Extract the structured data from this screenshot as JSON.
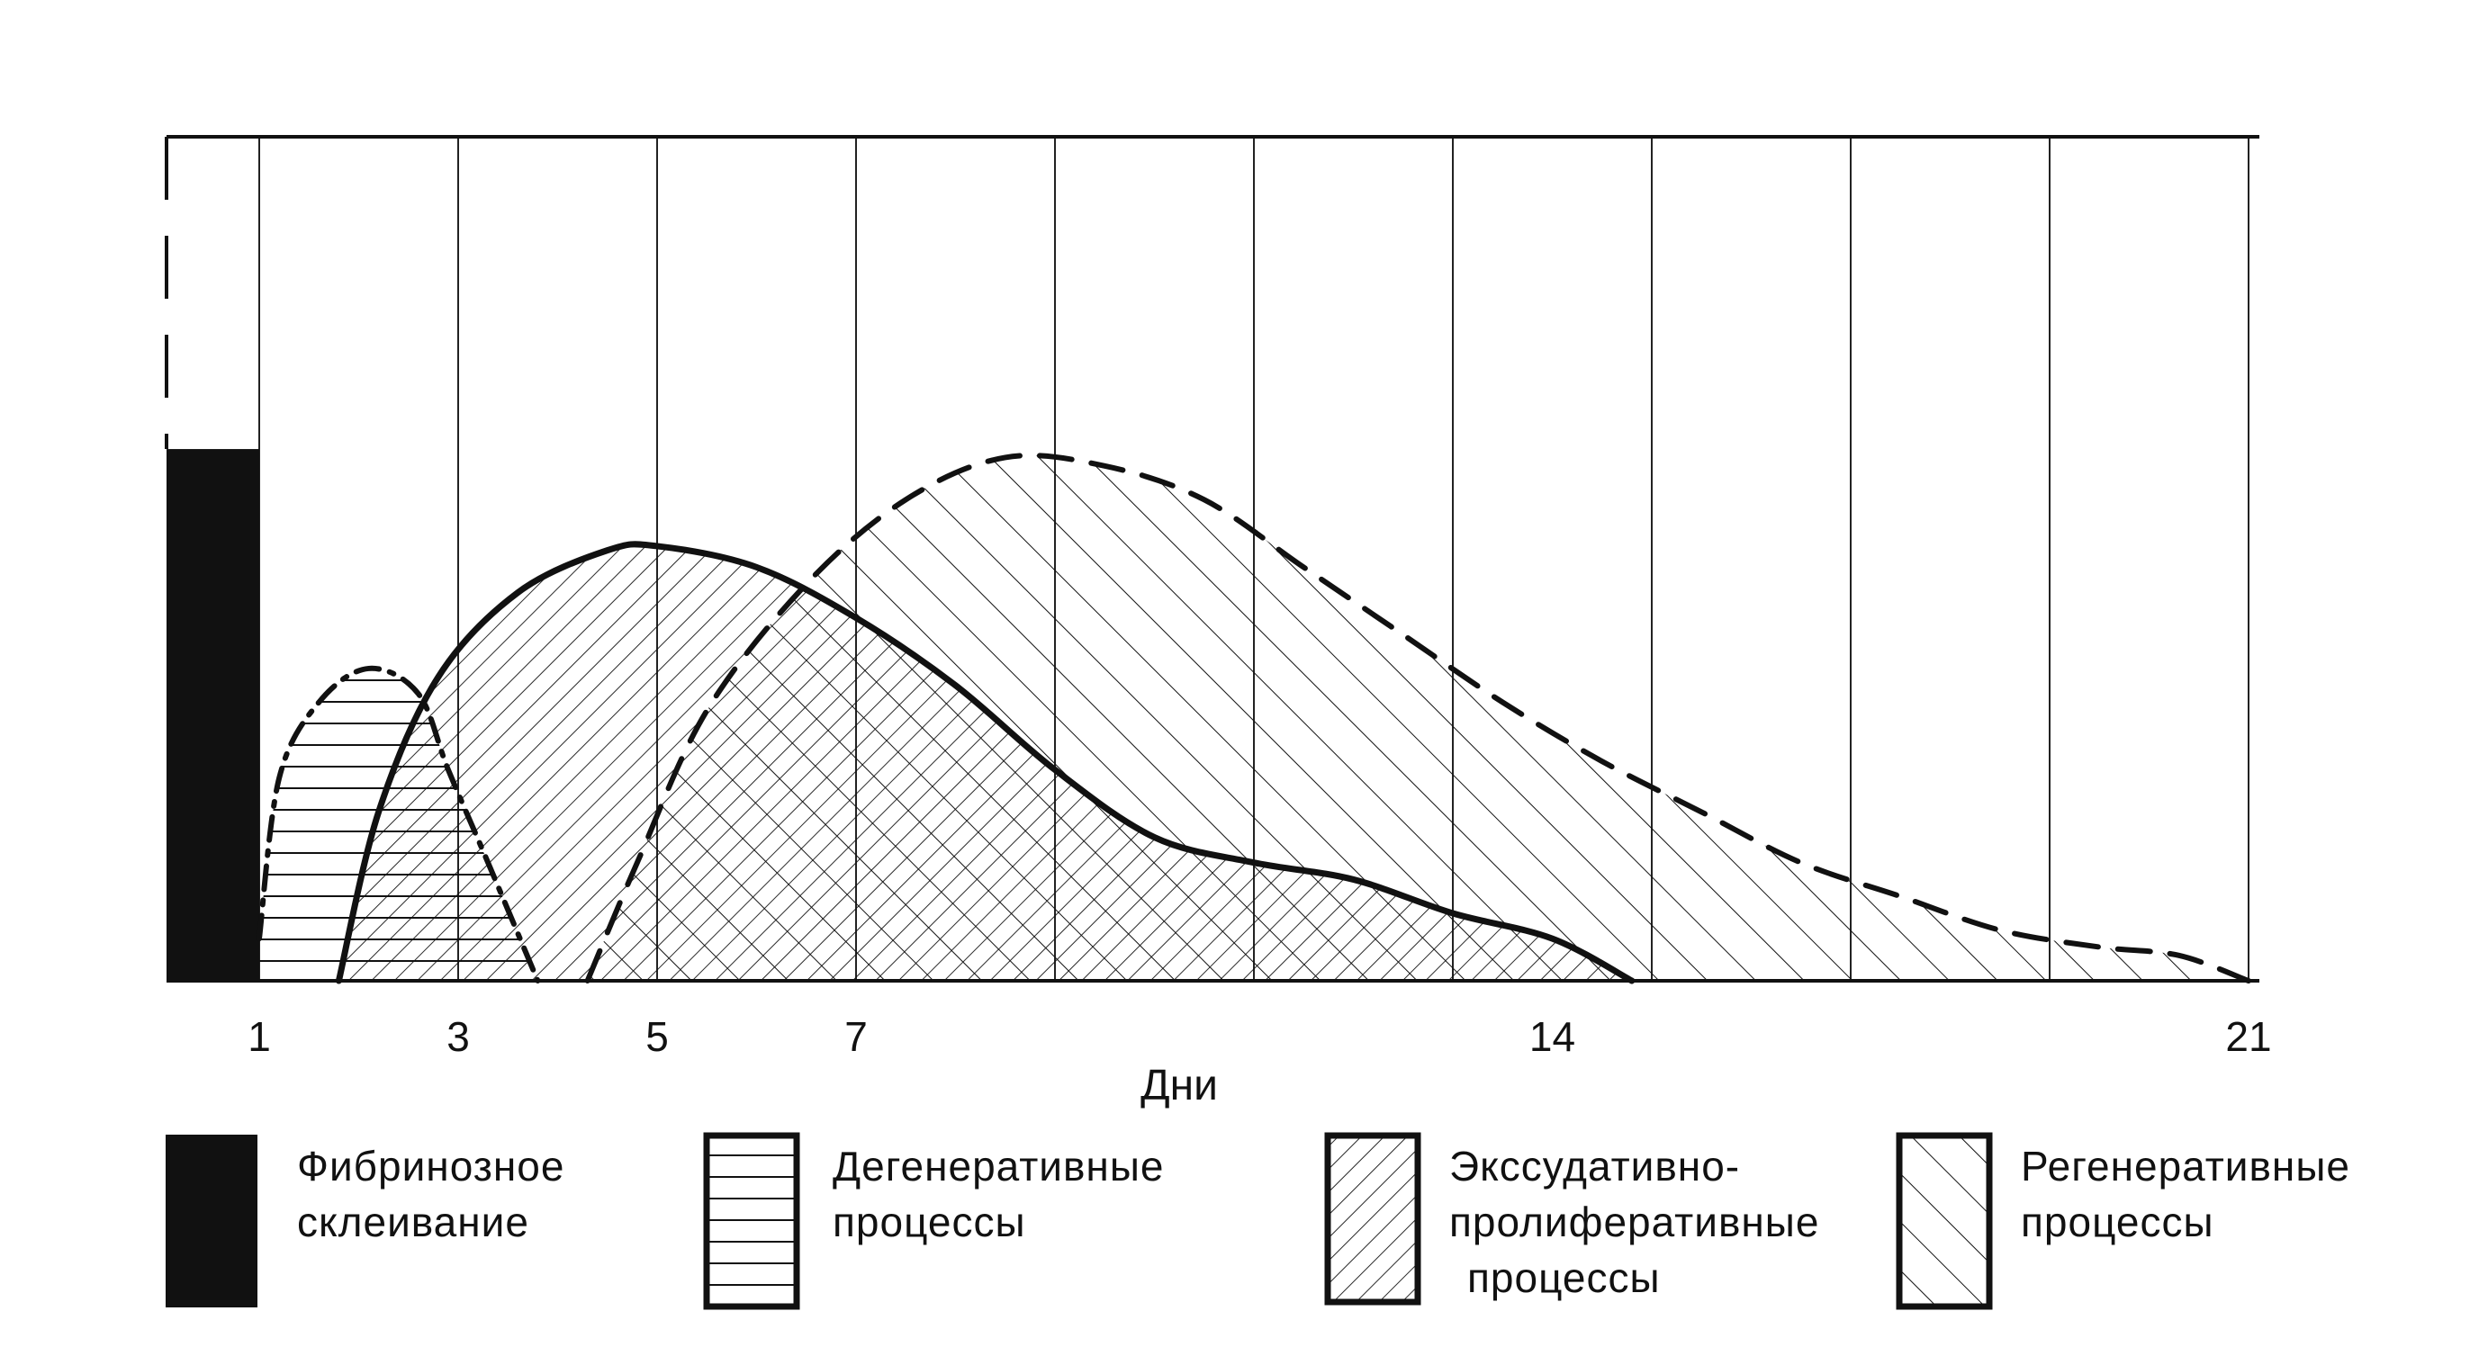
{
  "chart_data": {
    "type": "area",
    "xlabel": "Дни",
    "xlim": [
      0,
      21
    ],
    "ylim": [
      0,
      1
    ],
    "x_ticks": [
      {
        "value": 1,
        "label": "1"
      },
      {
        "value": 3,
        "label": "3"
      },
      {
        "value": 5,
        "label": "5"
      },
      {
        "value": 7,
        "label": "7"
      },
      {
        "value": 14,
        "label": "14"
      },
      {
        "value": 21,
        "label": "21"
      }
    ],
    "gridline_x": [
      1,
      3,
      5,
      7,
      9,
      11,
      13,
      15,
      17,
      19,
      21
    ],
    "series": [
      {
        "name": "Фибринозное склеивание",
        "pattern": "solid",
        "bar": {
          "x0": 0,
          "x1": 1,
          "y": 0.63
        }
      },
      {
        "name": "Дегенеративные процессы",
        "pattern": "horizontal-hatch",
        "line_style": "dash-dot",
        "points": [
          [
            1.0,
            0.05
          ],
          [
            1.2,
            0.24
          ],
          [
            1.6,
            0.33
          ],
          [
            2.1,
            0.37
          ],
          [
            2.6,
            0.34
          ],
          [
            2.9,
            0.25
          ],
          [
            3.3,
            0.14
          ],
          [
            3.8,
            0.0
          ]
        ]
      },
      {
        "name": "Экссудативно-пролиферативные процессы",
        "pattern": "backslash-hatch",
        "line_style": "solid",
        "points": [
          [
            1.8,
            0.0
          ],
          [
            2.2,
            0.2
          ],
          [
            2.8,
            0.36
          ],
          [
            3.6,
            0.46
          ],
          [
            4.5,
            0.51
          ],
          [
            5.0,
            0.515
          ],
          [
            6.0,
            0.49
          ],
          [
            7.0,
            0.43
          ],
          [
            8.0,
            0.35
          ],
          [
            9.0,
            0.25
          ],
          [
            10.0,
            0.17
          ],
          [
            11.0,
            0.14
          ],
          [
            12.0,
            0.12
          ],
          [
            13.0,
            0.08
          ],
          [
            14.0,
            0.05
          ],
          [
            14.8,
            0.0
          ]
        ]
      },
      {
        "name": "Регенеративные процессы",
        "pattern": "slash-hatch",
        "line_style": "dashed",
        "points": [
          [
            4.3,
            0.0
          ],
          [
            4.8,
            0.14
          ],
          [
            5.5,
            0.32
          ],
          [
            6.5,
            0.47
          ],
          [
            7.5,
            0.57
          ],
          [
            8.5,
            0.62
          ],
          [
            9.5,
            0.61
          ],
          [
            10.5,
            0.57
          ],
          [
            11.5,
            0.49
          ],
          [
            12.5,
            0.41
          ],
          [
            13.5,
            0.33
          ],
          [
            14.5,
            0.26
          ],
          [
            15.5,
            0.2
          ],
          [
            16.5,
            0.14
          ],
          [
            17.5,
            0.1
          ],
          [
            18.5,
            0.06
          ],
          [
            19.5,
            0.04
          ],
          [
            20.3,
            0.03
          ],
          [
            21.0,
            0.0
          ]
        ]
      }
    ],
    "legend": [
      {
        "lines": [
          "Фибринозное",
          "склеивание"
        ],
        "pattern": "solid"
      },
      {
        "lines": [
          "Дегенеративные",
          "процессы"
        ],
        "pattern": "horizontal-hatch"
      },
      {
        "lines": [
          "Экссудативно-",
          "пролиферативные",
          "процессы"
        ],
        "pattern": "backslash-hatch"
      },
      {
        "lines": [
          "Регенеративные",
          "процессы"
        ],
        "pattern": "slash-hatch"
      }
    ],
    "legend_position": "bottom",
    "grid": true
  }
}
